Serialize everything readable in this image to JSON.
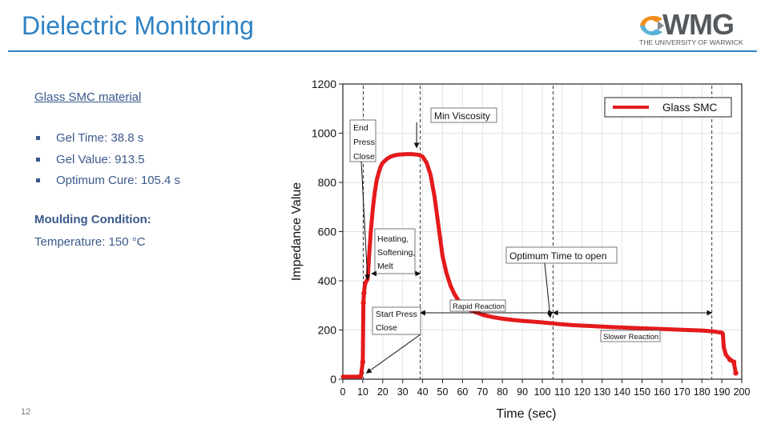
{
  "header": {
    "title": "Dielectric Monitoring",
    "logo_text": "WMG",
    "logo_subtext": "THE UNIVERSITY OF WARWICK"
  },
  "left_panel": {
    "subtitle": "Glass SMC material",
    "bullets": [
      "Gel Time: 38.8 s",
      "Gel Value: 913.5",
      "Optimum Cure: 105.4 s"
    ],
    "moulding_heading": "Moulding Condition:",
    "moulding_temperature": "Temperature: 150 °C"
  },
  "page_number": "12",
  "colors": {
    "title": "#2f82c4",
    "body_text": "#3a5a8c",
    "series": "#e41a1c"
  },
  "chart_data": {
    "type": "line",
    "title": "",
    "xlabel": "Time (sec)",
    "ylabel": "Impedance Value",
    "xlim": [
      0,
      200
    ],
    "ylim": [
      0,
      1200
    ],
    "x_ticks": [
      0,
      10,
      20,
      30,
      40,
      50,
      60,
      70,
      80,
      90,
      100,
      110,
      120,
      130,
      140,
      150,
      160,
      170,
      180,
      190,
      200
    ],
    "y_ticks": [
      0,
      200,
      400,
      600,
      800,
      1000,
      1200
    ],
    "legend": {
      "position": "top-right",
      "entries": [
        "Glass SMC"
      ]
    },
    "series": [
      {
        "name": "Glass SMC",
        "x": [
          0,
          3,
          6,
          9,
          10,
          10.3,
          10.6,
          11,
          11.5,
          12,
          12.5,
          13,
          14,
          15,
          16,
          17,
          18,
          19,
          20,
          22,
          24,
          26,
          28,
          30,
          32,
          34,
          36,
          38,
          40,
          42,
          44,
          46,
          48,
          50,
          52,
          54,
          56,
          58,
          60,
          62,
          64,
          66,
          68,
          70,
          73,
          76,
          80,
          85,
          90,
          95,
          100,
          105,
          110,
          115,
          120,
          130,
          140,
          150,
          160,
          170,
          180,
          186,
          189,
          190,
          190.5,
          191,
          192,
          193,
          194,
          195,
          196,
          197
        ],
        "values": [
          10,
          10,
          10,
          10,
          70,
          310,
          350,
          380,
          395,
          400,
          410,
          480,
          600,
          690,
          760,
          810,
          840,
          865,
          880,
          895,
          905,
          910,
          913,
          914,
          915,
          915,
          914,
          912,
          905,
          880,
          830,
          740,
          620,
          500,
          430,
          380,
          345,
          320,
          303,
          290,
          281,
          274,
          268,
          262,
          256,
          251,
          246,
          241,
          237,
          234,
          231,
          227,
          223,
          220,
          218,
          214,
          210,
          207,
          204,
          201,
          198,
          194,
          190,
          190,
          185,
          130,
          100,
          90,
          80,
          75,
          70,
          25
        ]
      }
    ],
    "vertical_markers": [
      {
        "x": 10.3,
        "label": ""
      },
      {
        "x": 38.8,
        "label": ""
      },
      {
        "x": 105.4,
        "label": ""
      },
      {
        "x": 185,
        "label": ""
      }
    ],
    "annotations": [
      {
        "label": "Min Viscosity",
        "target": [
          37,
          915
        ]
      },
      {
        "lines": [
          "End",
          "Press",
          "Close"
        ],
        "target": [
          12,
          395
        ]
      },
      {
        "lines": [
          "Heating,",
          "Softening,",
          "Melt"
        ],
        "target": [
          13,
          395
        ]
      },
      {
        "label": "Optimum Time to open",
        "target": [
          104,
          225
        ]
      },
      {
        "label": "Rapid Reaction",
        "arrow": "double",
        "from": 38.8,
        "to": 105.4
      },
      {
        "label": "Slower Reaction",
        "arrow": "double",
        "from": 105.4,
        "to": 185
      },
      {
        "lines": [
          "Start Press",
          "Close"
        ],
        "target": [
          11,
          15
        ]
      }
    ]
  }
}
